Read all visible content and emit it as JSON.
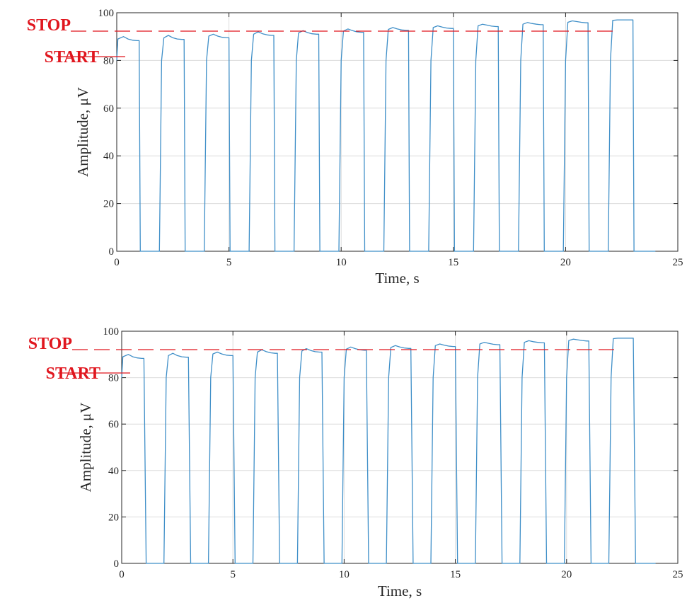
{
  "colors": {
    "series": "#3f8fc8",
    "marker": "#e0161e",
    "grid": "#dcdcdc",
    "axis": "#262626"
  },
  "chart_data": [
    {
      "type": "line",
      "title": "",
      "xlabel": "Time, s",
      "ylabel": "Amplitude, μV",
      "xlim": [
        0,
        25
      ],
      "ylim": [
        0,
        100
      ],
      "xticks": [
        0,
        5,
        10,
        15,
        20,
        25
      ],
      "yticks": [
        0,
        20,
        40,
        60,
        80,
        100
      ],
      "grid": true,
      "markers": [
        {
          "label": "STOP",
          "y": 98,
          "style": "dashed"
        },
        {
          "label": "START",
          "y": 90,
          "style": "solid"
        }
      ],
      "series": [
        {
          "x": [
            0,
            0.05,
            0.3,
            0.5,
            0.7,
            0.9,
            1.0,
            1.05,
            1.1,
            1.9,
            2.0,
            2.1,
            2.3,
            2.5,
            2.7,
            2.9,
            3.0,
            3.05,
            3.1,
            3.9,
            4.0,
            4.1,
            4.3,
            4.5,
            4.7,
            4.9,
            5.0,
            5.05,
            5.1,
            5.9,
            6.0,
            6.1,
            6.3,
            6.5,
            6.7,
            6.9,
            7.0,
            7.05,
            7.1,
            7.9,
            8.0,
            8.1,
            8.3,
            8.5,
            8.7,
            8.9,
            9.0,
            9.05,
            9.1,
            9.9,
            10.0,
            10.1,
            10.3,
            10.5,
            10.7,
            10.9,
            11.0,
            11.05,
            11.1,
            11.9,
            12.0,
            12.1,
            12.3,
            12.5,
            12.7,
            12.9,
            13.0,
            13.05,
            13.1,
            13.9,
            14.0,
            14.1,
            14.3,
            14.5,
            14.7,
            14.9,
            15.0,
            15.05,
            15.1,
            15.9,
            16.0,
            16.1,
            16.3,
            16.5,
            16.7,
            16.9,
            17.0,
            17.05,
            17.1,
            17.9,
            18.0,
            18.1,
            18.3,
            18.5,
            18.7,
            18.9,
            19.0,
            19.05,
            19.1,
            19.9,
            20.0,
            20.1,
            20.3,
            20.5,
            20.7,
            20.9,
            21.0,
            21.05,
            21.1,
            21.9,
            22.0,
            22.1,
            22.3,
            22.5,
            22.7,
            22.9,
            23.0,
            23.05,
            23.1,
            24.0
          ],
          "values": [
            80,
            89,
            90,
            89,
            88.5,
            88.3,
            88.3,
            0,
            0,
            0,
            80,
            89.5,
            90.5,
            89.5,
            89,
            88.8,
            88.8,
            0,
            0,
            0,
            80,
            90.2,
            91,
            90.2,
            89.7,
            89.5,
            89.5,
            0,
            0,
            0,
            80,
            91,
            92,
            91.2,
            90.7,
            90.5,
            90.5,
            0,
            0,
            0,
            80,
            91.5,
            92.5,
            91.7,
            91.2,
            91,
            91,
            0,
            0,
            0,
            80,
            92.3,
            93.2,
            92.5,
            92,
            91.8,
            91.8,
            0,
            0,
            0,
            80,
            93,
            93.8,
            93.2,
            92.8,
            92.6,
            92.6,
            0,
            0,
            0,
            80,
            93.8,
            94.5,
            94,
            93.6,
            93.4,
            93.4,
            0,
            0,
            0,
            80,
            94.5,
            95.2,
            94.8,
            94.4,
            94.2,
            94.2,
            0,
            0,
            0,
            80,
            95.2,
            95.9,
            95.5,
            95.2,
            95,
            95,
            0,
            0,
            0,
            80,
            96,
            96.6,
            96.3,
            96,
            95.8,
            95.8,
            0,
            0,
            0,
            80,
            96.8,
            97,
            97,
            97,
            97,
            97,
            0,
            0,
            0
          ]
        }
      ]
    },
    {
      "type": "line",
      "title": "",
      "xlabel": "Time, s",
      "ylabel": "Amplitude, μV",
      "xlim": [
        0,
        25
      ],
      "ylim": [
        0,
        100
      ],
      "xticks": [
        0,
        5,
        10,
        15,
        20,
        25
      ],
      "yticks": [
        0,
        20,
        40,
        60,
        80,
        100
      ],
      "grid": true,
      "markers": [
        {
          "label": "STOP",
          "y": 98,
          "style": "dashed"
        },
        {
          "label": "START",
          "y": 90,
          "style": "solid"
        }
      ],
      "series": [
        {
          "x": [
            0,
            0.05,
            0.3,
            0.5,
            0.7,
            0.9,
            1.0,
            1.1,
            1.15,
            1.9,
            2.0,
            2.1,
            2.3,
            2.5,
            2.7,
            2.9,
            3.0,
            3.1,
            3.15,
            3.9,
            4.0,
            4.1,
            4.3,
            4.5,
            4.7,
            4.9,
            5.0,
            5.1,
            5.15,
            5.9,
            6.0,
            6.1,
            6.3,
            6.5,
            6.7,
            6.9,
            7.0,
            7.1,
            7.15,
            7.9,
            8.0,
            8.1,
            8.3,
            8.5,
            8.7,
            8.9,
            9.0,
            9.1,
            9.15,
            9.9,
            10.0,
            10.1,
            10.3,
            10.5,
            10.7,
            10.9,
            11.0,
            11.1,
            11.15,
            11.9,
            12.0,
            12.1,
            12.3,
            12.5,
            12.7,
            12.9,
            13.0,
            13.1,
            13.15,
            13.9,
            14.0,
            14.1,
            14.3,
            14.5,
            14.7,
            14.9,
            15.0,
            15.1,
            15.15,
            15.9,
            16.0,
            16.1,
            16.3,
            16.5,
            16.7,
            16.9,
            17.0,
            17.1,
            17.15,
            17.9,
            18.0,
            18.1,
            18.3,
            18.5,
            18.7,
            18.9,
            19.0,
            19.1,
            19.15,
            19.9,
            20.0,
            20.1,
            20.3,
            20.5,
            20.7,
            20.9,
            21.0,
            21.1,
            21.15,
            21.9,
            22.0,
            22.1,
            22.3,
            22.5,
            22.7,
            22.9,
            23.0,
            23.1,
            23.15,
            24.0
          ],
          "values": [
            80,
            89,
            90,
            89,
            88.5,
            88.3,
            88.3,
            0,
            0,
            0,
            80,
            89.5,
            90.5,
            89.5,
            89,
            88.8,
            88.8,
            0,
            0,
            0,
            80,
            90.2,
            91,
            90.2,
            89.7,
            89.5,
            89.5,
            0,
            0,
            0,
            80,
            91,
            92,
            91.2,
            90.7,
            90.5,
            90.5,
            0,
            0,
            0,
            80,
            91.5,
            92.5,
            91.7,
            91.2,
            91,
            91,
            0,
            0,
            0,
            80,
            92.3,
            93.2,
            92.5,
            92,
            91.8,
            91.8,
            0,
            0,
            0,
            80,
            93,
            93.8,
            93.2,
            92.8,
            92.6,
            92.6,
            0,
            0,
            0,
            80,
            93.8,
            94.5,
            94,
            93.6,
            93.4,
            93.4,
            0,
            0,
            0,
            80,
            94.5,
            95.2,
            94.8,
            94.4,
            94.2,
            94.2,
            0,
            0,
            0,
            80,
            95.2,
            95.9,
            95.5,
            95.2,
            95,
            95,
            0,
            0,
            0,
            80,
            96,
            96.6,
            96.3,
            96,
            95.8,
            95.8,
            0,
            0,
            0,
            80,
            96.8,
            97,
            97,
            97,
            97,
            97,
            0,
            0,
            0
          ]
        }
      ]
    }
  ]
}
